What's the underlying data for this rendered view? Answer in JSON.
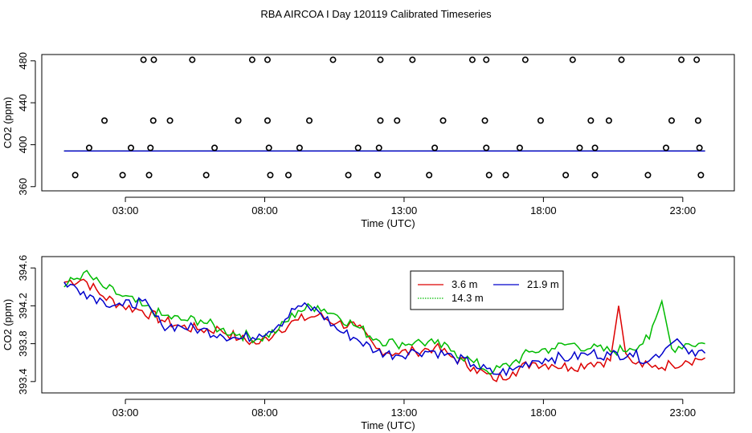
{
  "title": "RBA AIRCOA I  Day 120119  Calibrated Timeseries",
  "colors": {
    "red": "#dd0000",
    "green": "#00bb00",
    "blue": "#0000cc",
    "black": "#000000"
  },
  "chart_data": [
    {
      "type": "scatter",
      "xlabel": "Time (UTC)",
      "ylabel": "CO2 (ppm)",
      "xlim": [
        0.0,
        24.85
      ],
      "ylim": [
        356,
        486
      ],
      "xticks": [
        3,
        8,
        13,
        18,
        23
      ],
      "xtick_labels": [
        "03:00",
        "08:00",
        "13:00",
        "18:00",
        "23:00"
      ],
      "yticks": [
        360,
        400,
        440,
        480
      ],
      "ytick_labels": [
        "360",
        "400",
        "440",
        "480"
      ],
      "circle_points": [
        {
          "x": 3.65,
          "y": 481
        },
        {
          "x": 5.4,
          "y": 481
        },
        {
          "x": 7.55,
          "y": 481
        },
        {
          "x": 8.1,
          "y": 481
        },
        {
          "x": 10.45,
          "y": 481
        },
        {
          "x": 12.15,
          "y": 481
        },
        {
          "x": 13.3,
          "y": 481
        },
        {
          "x": 15.45,
          "y": 481
        },
        {
          "x": 15.95,
          "y": 481
        },
        {
          "x": 17.35,
          "y": 481
        },
        {
          "x": 19.05,
          "y": 481
        },
        {
          "x": 20.8,
          "y": 481
        },
        {
          "x": 22.95,
          "y": 481
        },
        {
          "x": 23.5,
          "y": 481
        },
        {
          "x": 4.02,
          "y": 481
        },
        {
          "x": 2.25,
          "y": 423
        },
        {
          "x": 4.0,
          "y": 423
        },
        {
          "x": 4.6,
          "y": 423
        },
        {
          "x": 7.05,
          "y": 423
        },
        {
          "x": 8.1,
          "y": 423
        },
        {
          "x": 9.6,
          "y": 423
        },
        {
          "x": 12.15,
          "y": 423
        },
        {
          "x": 12.75,
          "y": 423
        },
        {
          "x": 14.4,
          "y": 423
        },
        {
          "x": 15.9,
          "y": 423
        },
        {
          "x": 17.9,
          "y": 423
        },
        {
          "x": 19.7,
          "y": 423
        },
        {
          "x": 20.35,
          "y": 423
        },
        {
          "x": 22.6,
          "y": 423
        },
        {
          "x": 23.55,
          "y": 423
        },
        {
          "x": 1.7,
          "y": 397
        },
        {
          "x": 3.2,
          "y": 397
        },
        {
          "x": 3.9,
          "y": 397
        },
        {
          "x": 6.2,
          "y": 397
        },
        {
          "x": 8.15,
          "y": 397
        },
        {
          "x": 9.25,
          "y": 397
        },
        {
          "x": 11.35,
          "y": 397
        },
        {
          "x": 12.1,
          "y": 397
        },
        {
          "x": 14.1,
          "y": 397
        },
        {
          "x": 15.95,
          "y": 397
        },
        {
          "x": 17.15,
          "y": 397
        },
        {
          "x": 19.3,
          "y": 397
        },
        {
          "x": 19.85,
          "y": 397
        },
        {
          "x": 22.4,
          "y": 397
        },
        {
          "x": 23.6,
          "y": 397
        },
        {
          "x": 1.2,
          "y": 371
        },
        {
          "x": 2.9,
          "y": 371
        },
        {
          "x": 3.85,
          "y": 371
        },
        {
          "x": 5.9,
          "y": 371
        },
        {
          "x": 8.2,
          "y": 371
        },
        {
          "x": 8.85,
          "y": 371
        },
        {
          "x": 11.0,
          "y": 371
        },
        {
          "x": 12.05,
          "y": 371
        },
        {
          "x": 13.9,
          "y": 371
        },
        {
          "x": 16.05,
          "y": 371
        },
        {
          "x": 16.65,
          "y": 371
        },
        {
          "x": 18.8,
          "y": 371
        },
        {
          "x": 19.85,
          "y": 371
        },
        {
          "x": 21.75,
          "y": 371
        },
        {
          "x": 23.65,
          "y": 371
        }
      ],
      "series": [
        {
          "name": "3.6 m",
          "color": "#dd0000",
          "mean": 394
        },
        {
          "name": "14.3 m",
          "color": "#00bb00",
          "mean": 394
        },
        {
          "name": "21.9 m",
          "color": "#0000cc",
          "mean": 394
        }
      ]
    },
    {
      "type": "line",
      "xlabel": "Time (UTC)",
      "ylabel": "CO2 (ppm)",
      "xlim": [
        0.0,
        24.85
      ],
      "ylim": [
        393.28,
        394.72
      ],
      "xticks": [
        3,
        8,
        13,
        18,
        23
      ],
      "xtick_labels": [
        "03:00",
        "08:00",
        "13:00",
        "18:00",
        "23:00"
      ],
      "yticks": [
        393.4,
        393.8,
        394.2,
        394.6
      ],
      "ytick_labels": [
        "393.4",
        "393.8",
        "394.2",
        "394.6"
      ],
      "legend": {
        "position": "top-center",
        "entries": [
          {
            "label": "3.6 m",
            "color": "#dd0000",
            "style": "solid"
          },
          {
            "label": "21.9 m",
            "color": "#0000cc",
            "style": "solid"
          },
          {
            "label": "14.3 m",
            "color": "#00bb00",
            "style": "dotted"
          }
        ]
      },
      "series": [
        {
          "name": "3.6 m",
          "color": "#dd0000",
          "x": [
            0.8,
            1.5,
            2.2,
            2.9,
            3.6,
            4.3,
            5.0,
            5.7,
            6.4,
            7.1,
            7.8,
            8.5,
            9.2,
            9.9,
            10.6,
            11.3,
            12.0,
            12.7,
            13.4,
            14.1,
            14.8,
            15.5,
            16.2,
            16.9,
            17.6,
            18.3,
            19.0,
            19.7,
            20.4,
            20.7,
            20.95,
            21.2,
            21.9,
            22.6,
            23.1,
            23.8
          ],
          "values": [
            394.45,
            394.48,
            394.3,
            394.2,
            394.15,
            394.05,
            393.98,
            393.95,
            393.95,
            393.85,
            393.8,
            393.95,
            394.05,
            394.1,
            394.02,
            393.98,
            393.75,
            393.7,
            393.72,
            393.76,
            393.65,
            393.55,
            393.42,
            393.5,
            393.6,
            393.58,
            393.55,
            393.6,
            393.62,
            394.2,
            393.7,
            393.6,
            393.55,
            393.58,
            393.62,
            393.65
          ]
        },
        {
          "name": "14.3 m",
          "color": "#00bb00",
          "x": [
            0.8,
            1.5,
            2.2,
            2.9,
            3.6,
            4.3,
            5.0,
            5.7,
            6.4,
            7.1,
            7.8,
            8.5,
            9.2,
            9.9,
            10.6,
            11.3,
            12.0,
            12.7,
            13.4,
            14.1,
            14.8,
            15.5,
            16.2,
            16.9,
            17.6,
            18.3,
            19.0,
            19.7,
            20.4,
            21.1,
            21.8,
            22.25,
            22.6,
            23.1,
            23.8
          ],
          "values": [
            394.4,
            394.55,
            394.4,
            394.3,
            394.2,
            394.1,
            394.05,
            394.05,
            393.95,
            393.9,
            393.85,
            393.95,
            394.15,
            394.2,
            394.1,
            393.98,
            393.85,
            393.8,
            393.82,
            393.8,
            393.72,
            393.6,
            393.5,
            393.6,
            393.72,
            393.75,
            393.8,
            393.75,
            393.72,
            393.75,
            393.85,
            394.25,
            393.75,
            393.8,
            393.8
          ]
        },
        {
          "name": "21.9 m",
          "color": "#0000cc",
          "x": [
            0.8,
            1.5,
            2.2,
            2.9,
            3.6,
            4.3,
            5.0,
            5.7,
            6.4,
            7.1,
            7.8,
            8.5,
            9.2,
            9.9,
            10.6,
            11.3,
            12.0,
            12.7,
            13.4,
            14.1,
            14.8,
            15.5,
            16.2,
            16.9,
            17.6,
            18.3,
            19.0,
            19.7,
            20.4,
            21.1,
            21.8,
            22.5,
            22.8,
            23.1,
            23.8
          ],
          "values": [
            394.45,
            394.35,
            394.25,
            394.2,
            394.25,
            394.0,
            393.98,
            393.95,
            393.9,
            393.85,
            393.9,
            394.0,
            394.2,
            394.15,
            393.95,
            393.85,
            393.72,
            393.68,
            393.72,
            393.72,
            393.65,
            393.58,
            393.48,
            393.52,
            393.62,
            393.65,
            393.65,
            393.7,
            393.68,
            393.7,
            393.62,
            393.78,
            393.85,
            393.75,
            393.7
          ]
        }
      ]
    }
  ]
}
